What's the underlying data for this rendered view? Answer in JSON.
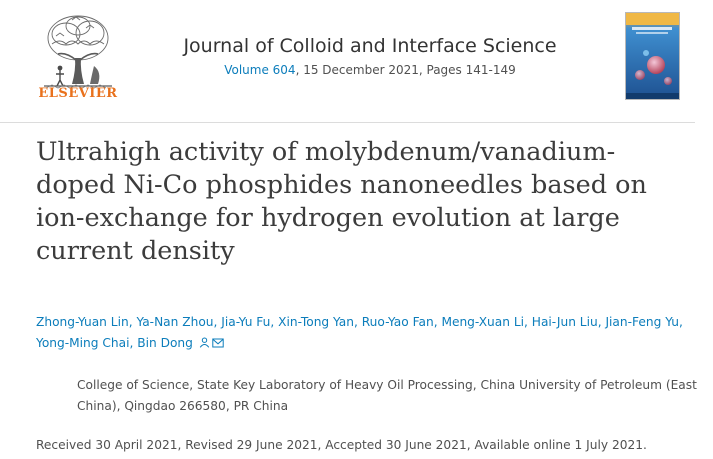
{
  "publisher": {
    "name": "ELSEVIER",
    "logo_icon": "elsevier-tree-icon"
  },
  "journal": {
    "title": "Journal of Colloid and Interface Science",
    "volume_link": "Volume 604",
    "volume_rest": ", 15 December 2021, Pages 141-149",
    "cover_icon": "journal-cover-image"
  },
  "article": {
    "title_lines": [
      "Ultrahigh activity of molybdenum/vanadium-",
      "doped Ni-Co phosphides nanoneedles based on",
      "ion-exchange for hydrogen evolution at large",
      "current density"
    ]
  },
  "authors": [
    "Zhong-Yuan Lin",
    "Ya-Nan Zhou",
    "Jia-Yu Fu",
    "Xin-Tong Yan",
    "Ruo-Yao Fan",
    "Meng-Xuan Li",
    "Hai-Jun Liu",
    "Jian-Feng Yu",
    "Yong-Ming Chai",
    "Bin Dong"
  ],
  "author_separator": ", ",
  "corresponding_icons": [
    "person-icon",
    "envelope-icon"
  ],
  "affiliation": {
    "lines": [
      "College of Science, State Key Laboratory of Heavy Oil Processing, China University of Petroleum (East",
      "China), Qingdao 266580, PR China"
    ]
  },
  "dates": "Received 30 April 2021, Revised 29 June 2021, Accepted 30 June 2021, Available online 1 July 2021.",
  "colors": {
    "link": "#0c7dbb",
    "publisher_orange": "#e9711c",
    "text": "#2e2e2e"
  }
}
